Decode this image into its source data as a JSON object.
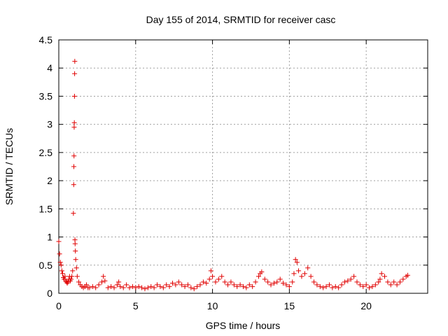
{
  "chart_data": {
    "type": "scatter",
    "title": "Day 155 of 2014, SRMTID for receiver casc",
    "xlabel": "GPS time / hours",
    "ylabel": "SRMTID / TECUs",
    "xlim": [
      0,
      24
    ],
    "ylim": [
      0,
      4.5
    ],
    "xticks": [
      "0",
      "5",
      "10",
      "15",
      "20"
    ],
    "yticks": [
      "0",
      "0.5",
      "1",
      "1.5",
      "2",
      "2.5",
      "3",
      "3.5",
      "4",
      "4.5"
    ],
    "grid": true,
    "marker": "+",
    "color": "#e00000",
    "series": [
      {
        "name": "SRMTID",
        "x": [
          0.0,
          0.05,
          0.1,
          0.15,
          0.2,
          0.25,
          0.3,
          0.35,
          0.4,
          0.45,
          0.5,
          0.55,
          0.6,
          0.65,
          0.7,
          0.75,
          0.8,
          0.85,
          0.9,
          0.95,
          0.97,
          0.98,
          0.99,
          1.0,
          1.01,
          1.02,
          1.03,
          1.04,
          1.05,
          1.06,
          1.08,
          1.1,
          1.15,
          1.2,
          1.3,
          1.4,
          1.5,
          1.6,
          1.7,
          1.8,
          1.9,
          2.0,
          2.2,
          2.4,
          2.6,
          2.8,
          2.9,
          3.0,
          3.2,
          3.4,
          3.6,
          3.8,
          3.9,
          4.0,
          4.2,
          4.4,
          4.6,
          4.8,
          5.0,
          5.2,
          5.4,
          5.6,
          5.8,
          6.0,
          6.2,
          6.4,
          6.6,
          6.8,
          7.0,
          7.2,
          7.4,
          7.6,
          7.8,
          8.0,
          8.2,
          8.4,
          8.6,
          8.8,
          9.0,
          9.2,
          9.4,
          9.6,
          9.8,
          9.9,
          10.0,
          10.2,
          10.4,
          10.6,
          10.8,
          11.0,
          11.2,
          11.4,
          11.6,
          11.8,
          12.0,
          12.2,
          12.4,
          12.6,
          12.8,
          13.0,
          13.1,
          13.2,
          13.4,
          13.6,
          13.8,
          14.0,
          14.2,
          14.4,
          14.6,
          14.8,
          15.0,
          15.2,
          15.3,
          15.4,
          15.5,
          15.6,
          15.8,
          16.0,
          16.2,
          16.4,
          16.6,
          16.8,
          17.0,
          17.2,
          17.4,
          17.6,
          17.8,
          18.0,
          18.2,
          18.4,
          18.6,
          18.8,
          19.0,
          19.2,
          19.4,
          19.6,
          19.8,
          20.0,
          20.2,
          20.4,
          20.6,
          20.8,
          20.9,
          21.0,
          21.2,
          21.4,
          21.6,
          21.8,
          22.0,
          22.2,
          22.4,
          22.6,
          22.7
        ],
        "y": [
          0.92,
          0.7,
          0.55,
          0.5,
          0.4,
          0.35,
          0.28,
          0.25,
          0.3,
          0.22,
          0.2,
          0.18,
          0.2,
          0.25,
          0.3,
          0.22,
          0.25,
          0.3,
          0.4,
          1.42,
          1.93,
          2.25,
          2.44,
          2.95,
          3.03,
          3.5,
          3.9,
          4.12,
          0.95,
          0.88,
          0.75,
          0.6,
          0.45,
          0.3,
          0.2,
          0.15,
          0.12,
          0.1,
          0.12,
          0.15,
          0.1,
          0.1,
          0.12,
          0.1,
          0.15,
          0.2,
          0.3,
          0.22,
          0.1,
          0.12,
          0.1,
          0.15,
          0.2,
          0.12,
          0.1,
          0.15,
          0.1,
          0.12,
          0.1,
          0.12,
          0.1,
          0.08,
          0.1,
          0.12,
          0.1,
          0.15,
          0.12,
          0.1,
          0.15,
          0.12,
          0.18,
          0.15,
          0.2,
          0.15,
          0.12,
          0.15,
          0.1,
          0.08,
          0.12,
          0.15,
          0.2,
          0.18,
          0.25,
          0.4,
          0.3,
          0.2,
          0.25,
          0.3,
          0.2,
          0.15,
          0.2,
          0.15,
          0.12,
          0.15,
          0.12,
          0.1,
          0.15,
          0.12,
          0.2,
          0.3,
          0.35,
          0.38,
          0.25,
          0.2,
          0.15,
          0.18,
          0.2,
          0.25,
          0.18,
          0.15,
          0.12,
          0.2,
          0.35,
          0.6,
          0.55,
          0.4,
          0.3,
          0.35,
          0.45,
          0.3,
          0.2,
          0.15,
          0.12,
          0.1,
          0.12,
          0.15,
          0.1,
          0.12,
          0.1,
          0.15,
          0.2,
          0.22,
          0.25,
          0.3,
          0.2,
          0.15,
          0.12,
          0.15,
          0.1,
          0.12,
          0.15,
          0.2,
          0.25,
          0.35,
          0.3,
          0.2,
          0.15,
          0.2,
          0.15,
          0.2,
          0.25,
          0.3,
          0.32
        ]
      }
    ]
  }
}
